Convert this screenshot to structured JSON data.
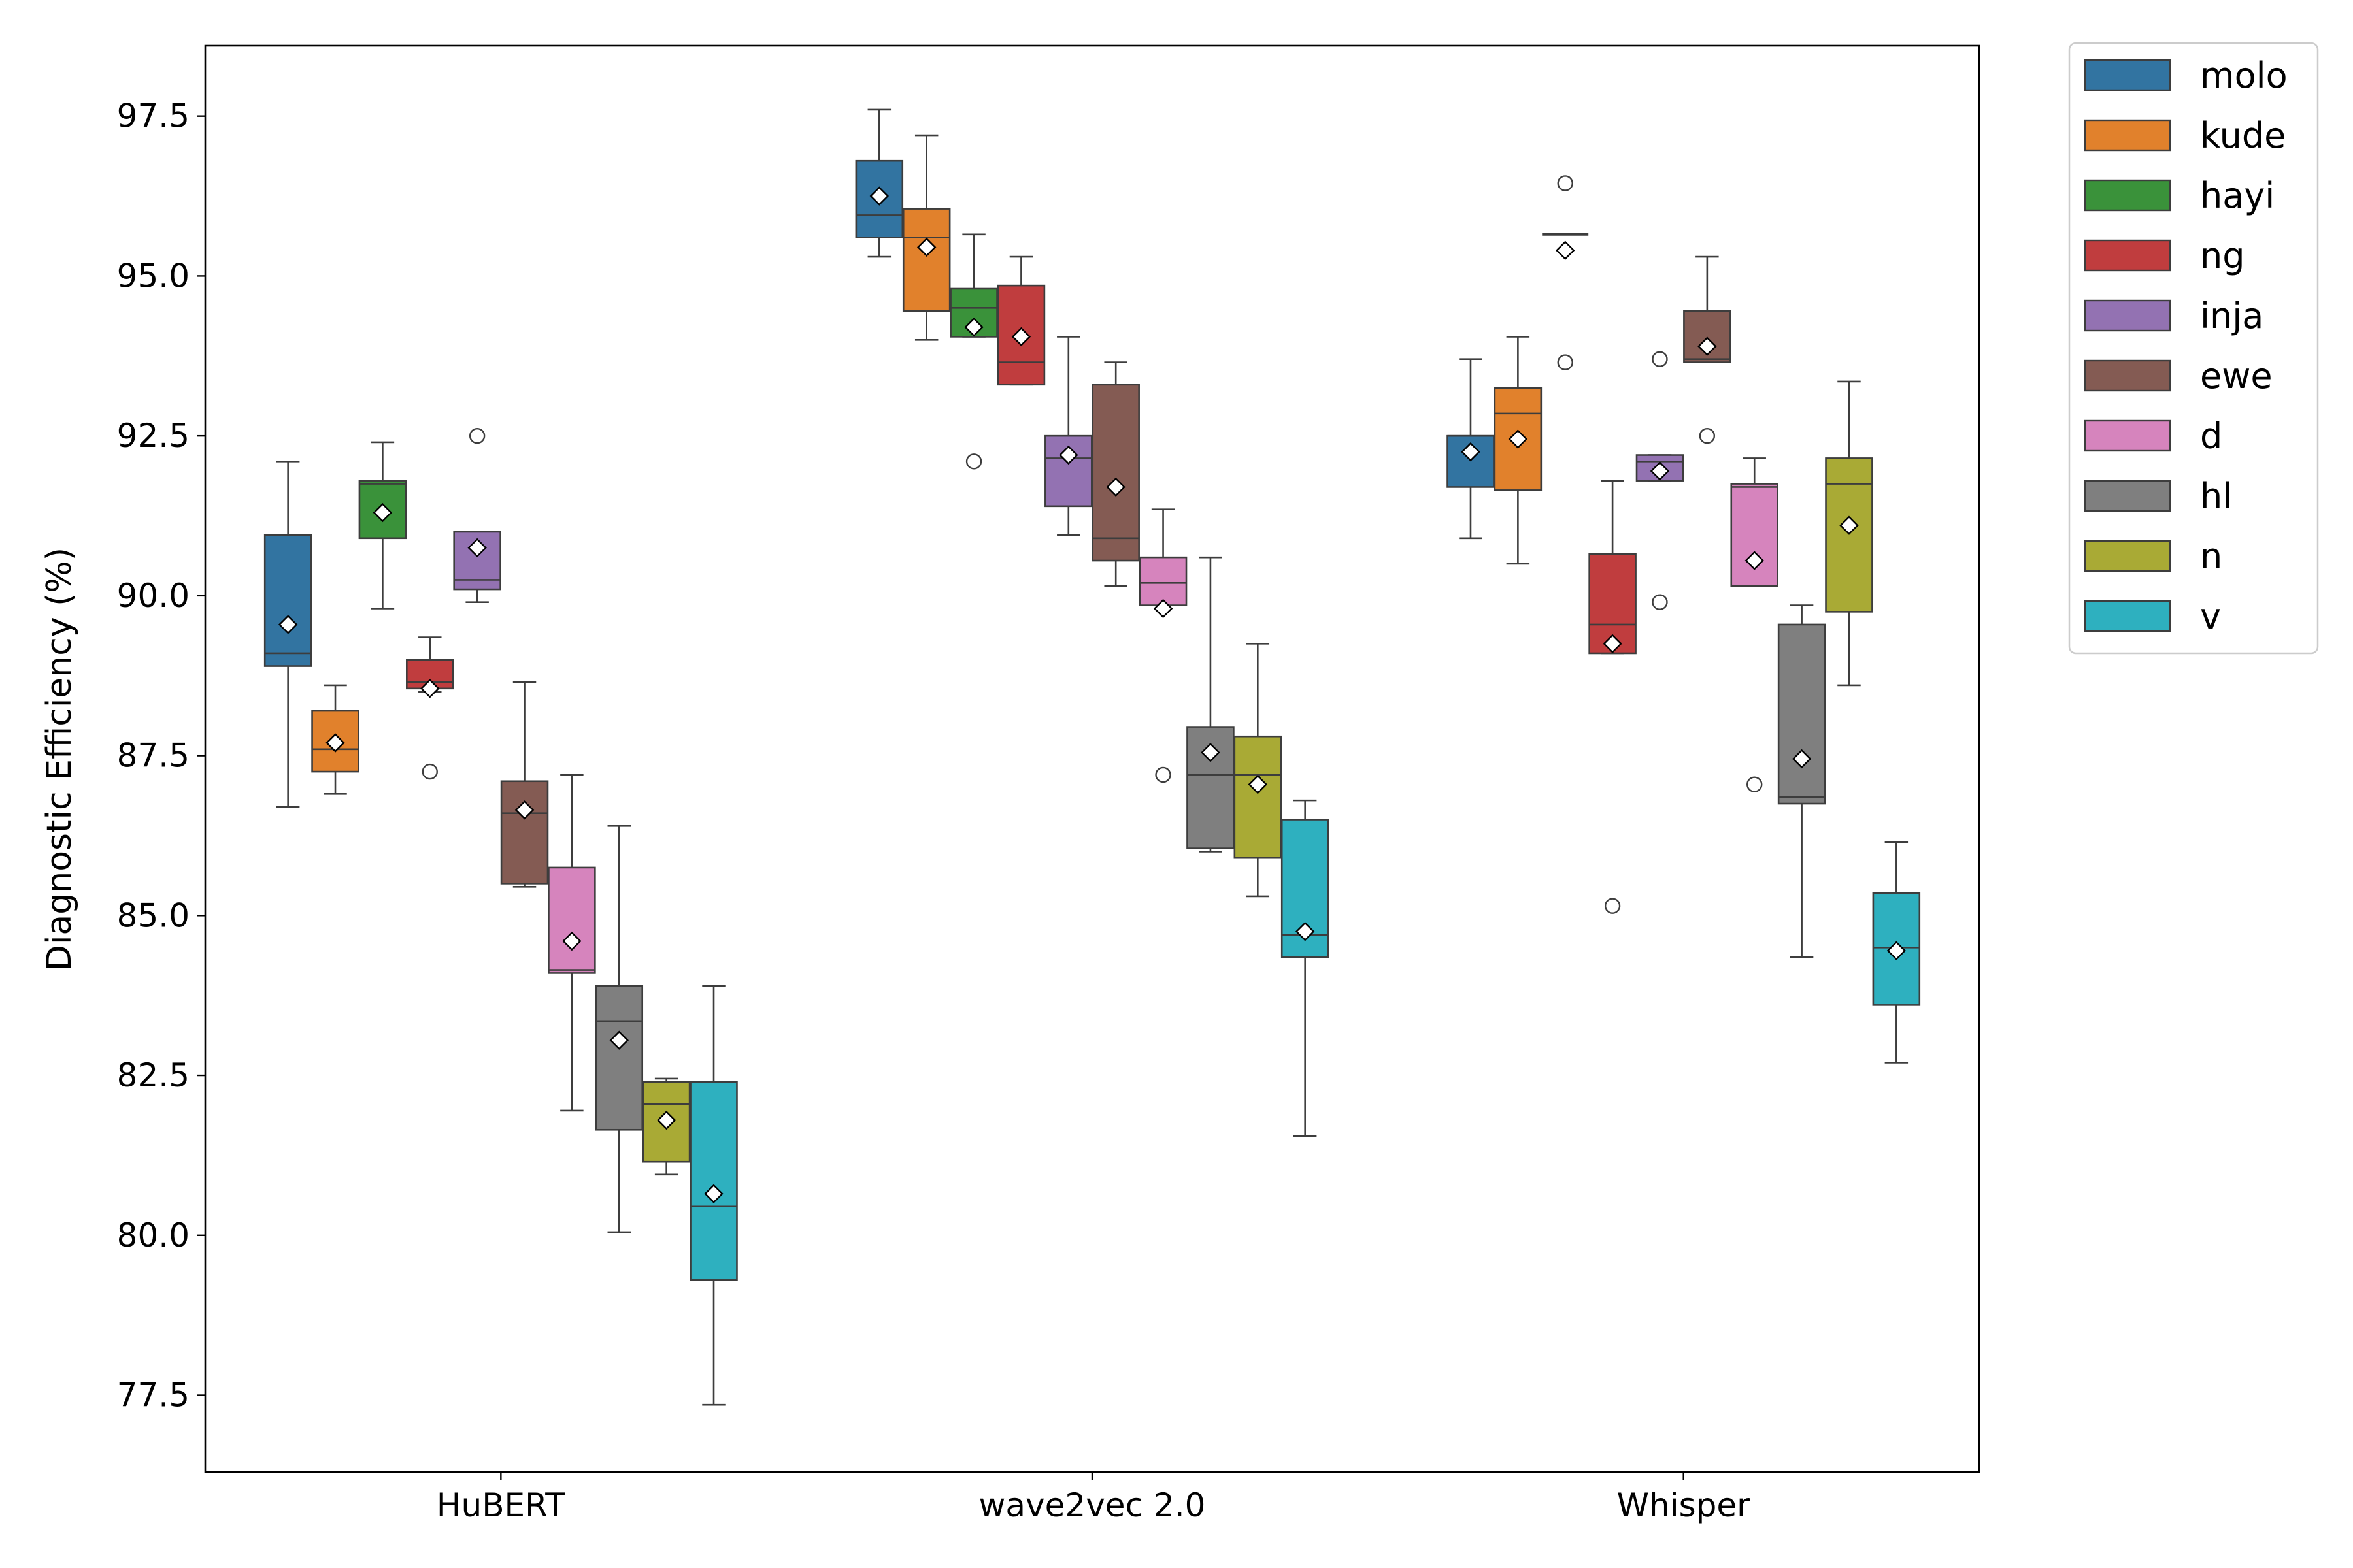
{
  "chart_data": {
    "type": "box",
    "title": "",
    "xlabel": "",
    "ylabel": "Diagnostic Efficiency (%)",
    "ylim": [
      76.3,
      98.6
    ],
    "yticks": [
      "77.5",
      "80.0",
      "82.5",
      "85.0",
      "87.5",
      "90.0",
      "92.5",
      "95.0",
      "97.5"
    ],
    "categories": [
      "HuBERT",
      "wave2vec 2.0",
      "Whisper"
    ],
    "legend_position": "outside-right-top",
    "mean_marker": "white diamond",
    "series": [
      {
        "name": "molo",
        "color": "#3274a1",
        "boxes": [
          {
            "whislo": 86.7,
            "q1": 88.9,
            "med": 89.1,
            "q3": 90.95,
            "whishi": 92.1,
            "mean": 89.55,
            "fliers": []
          },
          {
            "whislo": 95.3,
            "q1": 95.6,
            "med": 95.95,
            "q3": 96.8,
            "whishi": 97.6,
            "mean": 96.25,
            "fliers": []
          },
          {
            "whislo": 90.9,
            "q1": 91.7,
            "med": 92.5,
            "q3": 92.5,
            "whishi": 93.7,
            "mean": 92.25,
            "fliers": []
          }
        ]
      },
      {
        "name": "kude",
        "color": "#e1812c",
        "boxes": [
          {
            "whislo": 86.9,
            "q1": 87.25,
            "med": 87.6,
            "q3": 88.2,
            "whishi": 88.6,
            "mean": 87.7,
            "fliers": []
          },
          {
            "whislo": 94.0,
            "q1": 94.45,
            "med": 95.6,
            "q3": 96.05,
            "whishi": 97.2,
            "mean": 95.45,
            "fliers": []
          },
          {
            "whislo": 90.5,
            "q1": 91.65,
            "med": 92.85,
            "q3": 93.25,
            "whishi": 94.05,
            "mean": 92.45,
            "fliers": []
          }
        ]
      },
      {
        "name": "hayi",
        "color": "#3a923a",
        "boxes": [
          {
            "whislo": 89.8,
            "q1": 90.9,
            "med": 91.75,
            "q3": 91.8,
            "whishi": 92.4,
            "mean": 91.3,
            "fliers": []
          },
          {
            "whislo": 94.05,
            "q1": 94.05,
            "med": 94.5,
            "q3": 94.8,
            "whishi": 95.65,
            "mean": 94.2,
            "fliers": [
              92.1
            ]
          },
          null
        ]
      },
      {
        "name": "ng",
        "color": "#c03d3e",
        "boxes": [
          {
            "whislo": 88.5,
            "q1": 88.55,
            "med": 88.65,
            "q3": 89.0,
            "whishi": 89.35,
            "mean": 88.55,
            "fliers": [
              87.25
            ]
          },
          {
            "whislo": 93.3,
            "q1": 93.3,
            "med": 93.65,
            "q3": 94.85,
            "whishi": 95.3,
            "mean": 94.05,
            "fliers": []
          },
          {
            "whislo": 89.1,
            "q1": 89.1,
            "med": 89.55,
            "q3": 90.65,
            "whishi": 91.8,
            "mean": 89.25,
            "fliers": [
              85.15
            ]
          }
        ]
      },
      {
        "name": "inja",
        "color": "#9372b2",
        "boxes": [
          {
            "whislo": 89.9,
            "q1": 90.1,
            "med": 90.25,
            "q3": 91.0,
            "whishi": 91.0,
            "mean": 90.75,
            "fliers": [
              92.5
            ]
          },
          {
            "whislo": 90.95,
            "q1": 91.4,
            "med": 92.15,
            "q3": 92.5,
            "whishi": 94.05,
            "mean": 92.2,
            "fliers": []
          },
          {
            "whislo": 91.8,
            "q1": 91.8,
            "med": 92.1,
            "q3": 92.2,
            "whishi": 92.2,
            "mean": 91.95,
            "fliers": [
              93.7,
              89.9
            ]
          }
        ]
      },
      {
        "name": "ewe",
        "color": "#845b53",
        "boxes": [
          {
            "whislo": 85.45,
            "q1": 85.5,
            "med": 86.6,
            "q3": 87.1,
            "whishi": 88.65,
            "mean": 86.65,
            "fliers": []
          },
          {
            "whislo": 90.15,
            "q1": 90.55,
            "med": 90.9,
            "q3": 93.3,
            "whishi": 93.65,
            "mean": 91.7,
            "fliers": []
          },
          {
            "whislo": 93.65,
            "q1": 93.65,
            "med": 93.7,
            "q3": 94.45,
            "whishi": 95.3,
            "mean": 93.9,
            "fliers": [
              92.5
            ]
          }
        ]
      },
      {
        "name": "d",
        "color": "#d684bd",
        "boxes": [
          {
            "whislo": 81.95,
            "q1": 84.1,
            "med": 84.15,
            "q3": 85.75,
            "whishi": 87.2,
            "mean": 84.6,
            "fliers": []
          },
          {
            "whislo": 89.85,
            "q1": 89.85,
            "med": 90.2,
            "q3": 90.6,
            "whishi": 91.35,
            "mean": 89.8,
            "fliers": [
              87.2
            ]
          },
          {
            "whislo": 90.15,
            "q1": 90.15,
            "med": 91.7,
            "q3": 91.75,
            "whishi": 92.15,
            "mean": 90.55,
            "fliers": [
              87.05
            ]
          }
        ]
      },
      {
        "name": "hl",
        "color": "#7f7f7f",
        "boxes": [
          {
            "whislo": 80.05,
            "q1": 81.65,
            "med": 83.35,
            "q3": 83.9,
            "whishi": 86.4,
            "mean": 83.05,
            "fliers": []
          },
          {
            "whislo": 86.0,
            "q1": 86.05,
            "med": 87.2,
            "q3": 87.95,
            "whishi": 90.6,
            "mean": 87.55,
            "fliers": []
          },
          {
            "whislo": 84.35,
            "q1": 86.75,
            "med": 86.85,
            "q3": 89.55,
            "whishi": 89.85,
            "mean": 87.45,
            "fliers": []
          }
        ]
      },
      {
        "name": "n",
        "color": "#a9aa35",
        "boxes": [
          {
            "whislo": 80.95,
            "q1": 81.15,
            "med": 82.05,
            "q3": 82.4,
            "whishi": 82.45,
            "mean": 81.8,
            "fliers": []
          },
          {
            "whislo": 85.3,
            "q1": 85.9,
            "med": 87.2,
            "q3": 87.8,
            "whishi": 89.25,
            "mean": 87.05,
            "fliers": []
          },
          {
            "whislo": 88.6,
            "q1": 89.75,
            "med": 91.75,
            "q3": 92.15,
            "whishi": 93.35,
            "mean": 91.1,
            "fliers": []
          }
        ]
      },
      {
        "name": "v",
        "color": "#2eb0bf",
        "boxes": [
          {
            "whislo": 77.35,
            "q1": 79.3,
            "med": 80.45,
            "q3": 82.4,
            "whishi": 83.9,
            "mean": 80.65,
            "fliers": []
          },
          {
            "whislo": 81.55,
            "q1": 84.35,
            "med": 84.7,
            "q3": 86.5,
            "whishi": 86.8,
            "mean": 84.75,
            "fliers": []
          },
          {
            "whislo": 82.7,
            "q1": 83.6,
            "med": 84.5,
            "q3": 85.35,
            "whishi": 86.15,
            "mean": 84.45,
            "fliers": []
          }
        ]
      }
    ],
    "extra_marks": [
      {
        "series": "hayi",
        "category": "Whisper",
        "median_line": 95.65,
        "mean": 95.4,
        "fliers": [
          96.45,
          93.65
        ]
      }
    ]
  }
}
